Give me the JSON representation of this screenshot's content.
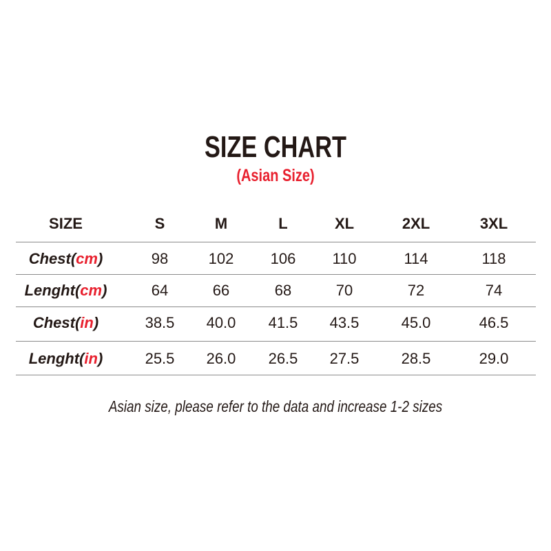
{
  "title": "SIZE CHART",
  "subtitle": "(Asian Size)",
  "colors": {
    "text": "#231815",
    "accent": "#e8202e",
    "rule": "#8a8a8a"
  },
  "table": {
    "header": {
      "label": "SIZE",
      "sizes": [
        "S",
        "M",
        "L",
        "XL",
        "2XL",
        "3XL"
      ]
    },
    "rows": [
      {
        "name": "Chest",
        "unit": "cm",
        "values": [
          "98",
          "102",
          "106",
          "110",
          "114",
          "118"
        ]
      },
      {
        "name": "Lenght",
        "unit": "cm",
        "values": [
          "64",
          "66",
          "68",
          "70",
          "72",
          "74"
        ]
      },
      {
        "name": "Chest",
        "unit": "in",
        "values": [
          "38.5",
          "40.0",
          "41.5",
          "43.5",
          "45.0",
          "46.5"
        ]
      },
      {
        "name": "Lenght",
        "unit": "in",
        "values": [
          "25.5",
          "26.0",
          "26.5",
          "27.5",
          "28.5",
          "29.0"
        ]
      }
    ]
  },
  "footer": "Asian size, please refer to the data and increase 1-2 sizes"
}
